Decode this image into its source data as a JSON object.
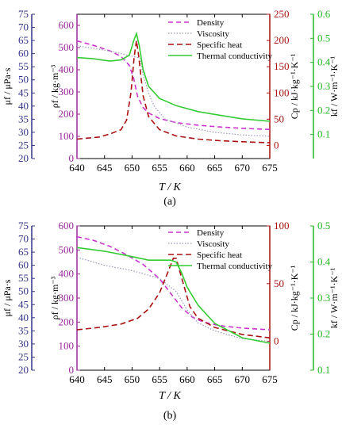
{
  "panels": [
    {
      "caption": "(a)",
      "x_label": "T / K",
      "axis_labels": {
        "mu": "μf / μPa·s",
        "rho": "ρf / kg·m⁻³",
        "cp": "Cp / kJ·kg⁻¹·K⁻¹",
        "k": "kf / W·m⁻¹·K⁻¹"
      },
      "legend": [
        "Density",
        "Viscosity",
        "Specific heat",
        "Thermal conductivity"
      ]
    },
    {
      "caption": "(b)",
      "x_label": "T / K",
      "axis_labels": {
        "mu": "μf / μPa·s",
        "rho": "ρf / kg·m⁻³",
        "cp": "Cp / kJ·kg⁻¹·K⁻¹",
        "k": "kf / W·m⁻¹·K⁻¹"
      },
      "legend": [
        "Density",
        "Viscosity",
        "Specific heat",
        "Thermal conductivity"
      ]
    }
  ],
  "colors": {
    "density": "#cc33cc",
    "viscosity": "#9999bb",
    "specific_heat": "#aa1111",
    "thermal_conductivity": "#33cc33",
    "mu_axis": "#33338a",
    "rho_axis": "#9a2a9a",
    "cp_axis": "#aa1111",
    "k_axis": "#22bb22"
  },
  "chart_data": [
    {
      "type": "line",
      "xlim": [
        640,
        675
      ],
      "x_ticks": [
        640,
        645,
        650,
        655,
        660,
        665,
        670,
        675
      ],
      "axes": {
        "mu": {
          "ylim": [
            20,
            75
          ],
          "ticks": [
            20,
            25,
            30,
            35,
            40,
            45,
            50,
            55,
            60,
            65,
            70,
            75
          ]
        },
        "rho": {
          "ylim": [
            0,
            650
          ],
          "ticks": [
            0,
            100,
            200,
            300,
            400,
            500,
            600
          ]
        },
        "cp": {
          "ylim": [
            -25,
            250
          ],
          "ticks": [
            0,
            50,
            100,
            150,
            200,
            250
          ]
        },
        "k": {
          "ylim": [
            0.0,
            0.6
          ],
          "ticks": [
            0.1,
            0.2,
            0.3,
            0.4,
            0.5,
            0.6
          ]
        }
      },
      "series": [
        {
          "name": "Density",
          "axis": "rho",
          "x": [
            640,
            643,
            646,
            648,
            649.5,
            650.3,
            651,
            652,
            653,
            655,
            658,
            662,
            666,
            670,
            675
          ],
          "y": [
            530,
            510,
            485,
            460,
            420,
            360,
            280,
            230,
            205,
            180,
            162,
            150,
            142,
            136,
            131
          ]
        },
        {
          "name": "Viscosity",
          "axis": "mu",
          "x": [
            640,
            643,
            646,
            648,
            650,
            651,
            651.5,
            652,
            653,
            654,
            656,
            660,
            665,
            670,
            675
          ],
          "y": [
            63,
            62,
            61,
            60,
            59,
            58.5,
            58,
            52,
            45,
            40,
            35,
            32,
            30,
            29,
            28.5
          ]
        },
        {
          "name": "Specific heat",
          "axis": "cp",
          "x": [
            640,
            644,
            646,
            648,
            649,
            649.8,
            650.4,
            650.8,
            651.2,
            652,
            653,
            655,
            658,
            662,
            666,
            670,
            675
          ],
          "y": [
            12,
            16,
            22,
            30,
            48,
            100,
            170,
            200,
            170,
            95,
            55,
            30,
            18,
            12,
            9,
            7,
            5
          ]
        },
        {
          "name": "Thermal conductivity",
          "axis": "k",
          "x": [
            640,
            643,
            646,
            648,
            649.5,
            650.3,
            650.8,
            651.3,
            652,
            653,
            655,
            658,
            662,
            666,
            670,
            675
          ],
          "y": [
            0.42,
            0.415,
            0.405,
            0.41,
            0.43,
            0.49,
            0.52,
            0.47,
            0.37,
            0.3,
            0.25,
            0.22,
            0.195,
            0.18,
            0.165,
            0.155
          ]
        }
      ]
    },
    {
      "type": "line",
      "xlim": [
        640,
        675
      ],
      "x_ticks": [
        640,
        645,
        650,
        655,
        660,
        665,
        670,
        675
      ],
      "axes": {
        "mu": {
          "ylim": [
            20,
            75
          ],
          "ticks": [
            20,
            25,
            30,
            35,
            40,
            45,
            50,
            55,
            60,
            65,
            70,
            75
          ]
        },
        "rho": {
          "ylim": [
            0,
            600
          ],
          "ticks": [
            0,
            100,
            200,
            300,
            400,
            500,
            600
          ]
        },
        "cp": {
          "ylim": [
            -25,
            100
          ],
          "ticks": [
            0,
            50,
            100
          ]
        },
        "k": {
          "ylim": [
            0.1,
            0.5
          ],
          "ticks": [
            0.1,
            0.2,
            0.3,
            0.4,
            0.5
          ]
        }
      },
      "series": [
        {
          "name": "Density",
          "axis": "rho",
          "x": [
            640,
            643,
            646,
            649,
            652,
            655,
            657,
            659,
            661,
            663,
            666,
            670,
            675
          ],
          "y": [
            555,
            540,
            515,
            480,
            440,
            380,
            320,
            260,
            220,
            200,
            185,
            175,
            168
          ]
        },
        {
          "name": "Viscosity",
          "axis": "mu",
          "x": [
            640,
            645,
            650,
            655,
            658,
            660,
            662,
            665,
            670,
            675
          ],
          "y": [
            63,
            60,
            58,
            55,
            50,
            43,
            38,
            35,
            32,
            31
          ]
        },
        {
          "name": "Specific heat",
          "axis": "cp",
          "x": [
            640,
            644,
            648,
            651,
            653,
            655,
            656.5,
            657.5,
            658,
            659,
            660.5,
            662,
            665,
            670,
            675
          ],
          "y": [
            10,
            12,
            15,
            20,
            28,
            42,
            60,
            72,
            72,
            55,
            30,
            20,
            12,
            6,
            3
          ]
        },
        {
          "name": "Thermal conductivity",
          "axis": "k",
          "x": [
            640,
            645,
            650,
            653,
            655,
            657,
            658,
            659,
            660,
            662,
            665,
            670,
            675
          ],
          "y": [
            0.44,
            0.43,
            0.415,
            0.405,
            0.405,
            0.405,
            0.4,
            0.37,
            0.33,
            0.28,
            0.23,
            0.19,
            0.175
          ]
        }
      ]
    }
  ]
}
